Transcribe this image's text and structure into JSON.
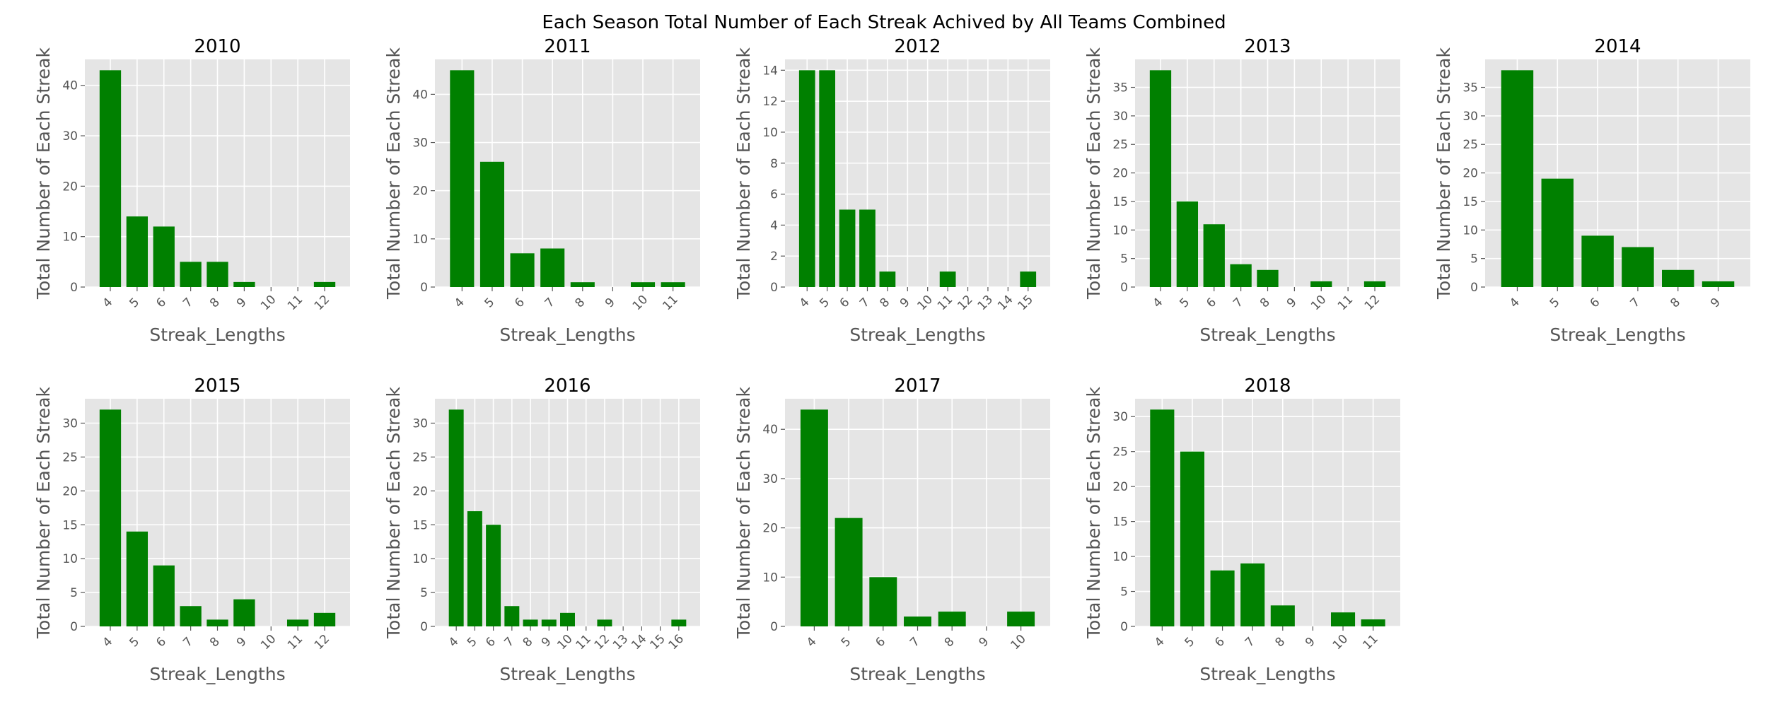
{
  "figure": {
    "title": "Each Season Total Number of Each Streak Achived by All Teams Combined"
  },
  "style": {
    "bar_color": "#008000",
    "axes_background": "#e5e5e5",
    "grid_color": "#ffffff",
    "text_color": "#555555"
  },
  "chart_data": [
    {
      "type": "bar",
      "title": "2010",
      "xlabel": "Streak_Lengths",
      "ylabel": "Total Number of Each Streak",
      "categories": [
        "4",
        "5",
        "6",
        "7",
        "8",
        "9",
        "10",
        "11",
        "12"
      ],
      "values": [
        43,
        14,
        12,
        5,
        5,
        1,
        0,
        0,
        1
      ],
      "ylim": [
        0,
        45.15
      ],
      "yticks": [
        0,
        10,
        20,
        30,
        40
      ],
      "grid": true,
      "xtick_rotation": 45
    },
    {
      "type": "bar",
      "title": "2011",
      "xlabel": "Streak_Lengths",
      "ylabel": "Total Number of Each Streak",
      "categories": [
        "4",
        "5",
        "6",
        "7",
        "8",
        "9",
        "10",
        "11"
      ],
      "values": [
        45,
        26,
        7,
        8,
        1,
        0,
        1,
        1
      ],
      "ylim": [
        0,
        47.25
      ],
      "yticks": [
        0,
        10,
        20,
        30,
        40
      ],
      "grid": true,
      "xtick_rotation": 45
    },
    {
      "type": "bar",
      "title": "2012",
      "xlabel": "Streak_Lengths",
      "ylabel": "Total Number of Each Streak",
      "categories": [
        "4",
        "5",
        "6",
        "7",
        "8",
        "9",
        "10",
        "11",
        "12",
        "13",
        "14",
        "15"
      ],
      "values": [
        14,
        14,
        5,
        5,
        1,
        0,
        0,
        1,
        0,
        0,
        0,
        1
      ],
      "ylim": [
        0,
        14.7
      ],
      "yticks": [
        0,
        2,
        4,
        6,
        8,
        10,
        12,
        14
      ],
      "grid": true,
      "xtick_rotation": 45
    },
    {
      "type": "bar",
      "title": "2013",
      "xlabel": "Streak_Lengths",
      "ylabel": "Total Number of Each Streak",
      "categories": [
        "4",
        "5",
        "6",
        "7",
        "8",
        "9",
        "10",
        "11",
        "12"
      ],
      "values": [
        38,
        15,
        11,
        4,
        3,
        0,
        1,
        0,
        1
      ],
      "ylim": [
        0,
        39.9
      ],
      "yticks": [
        0,
        5,
        10,
        15,
        20,
        25,
        30,
        35
      ],
      "grid": true,
      "xtick_rotation": 45
    },
    {
      "type": "bar",
      "title": "2014",
      "xlabel": "Streak_Lengths",
      "ylabel": "Total Number of Each Streak",
      "categories": [
        "4",
        "5",
        "6",
        "7",
        "8",
        "9"
      ],
      "values": [
        38,
        19,
        9,
        7,
        3,
        1
      ],
      "ylim": [
        0,
        39.9
      ],
      "yticks": [
        0,
        5,
        10,
        15,
        20,
        25,
        30,
        35
      ],
      "grid": true,
      "xtick_rotation": 45
    },
    {
      "type": "bar",
      "title": "2015",
      "xlabel": "Streak_Lengths",
      "ylabel": "Total Number of Each Streak",
      "categories": [
        "4",
        "5",
        "6",
        "7",
        "8",
        "9",
        "10",
        "11",
        "12"
      ],
      "values": [
        32,
        14,
        9,
        3,
        1,
        4,
        0,
        1,
        2
      ],
      "ylim": [
        0,
        33.6
      ],
      "yticks": [
        0,
        5,
        10,
        15,
        20,
        25,
        30
      ],
      "grid": true,
      "xtick_rotation": 45
    },
    {
      "type": "bar",
      "title": "2016",
      "xlabel": "Streak_Lengths",
      "ylabel": "Total Number of Each Streak",
      "categories": [
        "4",
        "5",
        "6",
        "7",
        "8",
        "9",
        "10",
        "11",
        "12",
        "13",
        "14",
        "15",
        "16"
      ],
      "values": [
        32,
        17,
        15,
        3,
        1,
        1,
        2,
        0,
        1,
        0,
        0,
        0,
        1
      ],
      "ylim": [
        0,
        33.6
      ],
      "yticks": [
        0,
        5,
        10,
        15,
        20,
        25,
        30
      ],
      "grid": true,
      "xtick_rotation": 45
    },
    {
      "type": "bar",
      "title": "2017",
      "xlabel": "Streak_Lengths",
      "ylabel": "Total Number of Each Streak",
      "categories": [
        "4",
        "5",
        "6",
        "7",
        "8",
        "9",
        "10"
      ],
      "values": [
        44,
        22,
        10,
        2,
        3,
        0,
        3
      ],
      "ylim": [
        0,
        46.2
      ],
      "yticks": [
        0,
        10,
        20,
        30,
        40
      ],
      "grid": true,
      "xtick_rotation": 45
    },
    {
      "type": "bar",
      "title": "2018",
      "xlabel": "Streak_Lengths",
      "ylabel": "Total Number of Each Streak",
      "categories": [
        "4",
        "5",
        "6",
        "7",
        "8",
        "9",
        "10",
        "11"
      ],
      "values": [
        31,
        25,
        8,
        9,
        3,
        0,
        2,
        1
      ],
      "ylim": [
        0,
        32.55
      ],
      "yticks": [
        0,
        5,
        10,
        15,
        20,
        25,
        30
      ],
      "grid": true,
      "xtick_rotation": 45
    }
  ]
}
